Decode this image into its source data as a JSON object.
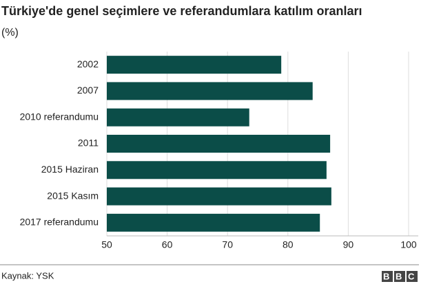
{
  "chart_data": {
    "type": "bar",
    "orientation": "horizontal",
    "title": "Türkiye'de genel seçimlere ve referandumlara katılım oranları",
    "subtitle": "(%)",
    "categories": [
      "2002",
      "2007",
      "2010 referandumu",
      "2011",
      "2015 Haziran",
      "2015 Kasım",
      "2017 referandumu"
    ],
    "values": [
      78.9,
      84.1,
      73.6,
      87.0,
      86.4,
      87.2,
      85.3
    ],
    "color": "#0b4d48",
    "xlim": [
      50,
      100
    ],
    "xticks": [
      50,
      60,
      70,
      80,
      90,
      100
    ],
    "grid": true,
    "source": "Kaynak: YSK",
    "logo": "BBC"
  }
}
